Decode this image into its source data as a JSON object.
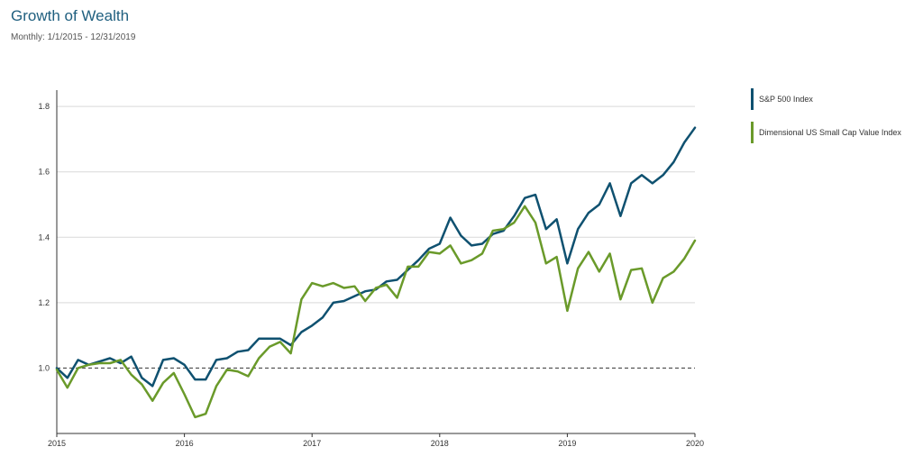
{
  "title": "Growth of Wealth",
  "subtitle": "Monthly: 1/1/2015 - 12/31/2019",
  "chart_data": {
    "type": "line",
    "title": "Growth of Wealth",
    "subtitle": "Monthly: 1/1/2015 - 12/31/2019",
    "xlabel": "",
    "ylabel": "",
    "xlim": [
      2015,
      2020
    ],
    "ylim": [
      0.8,
      1.85
    ],
    "x_ticks": [
      "2015",
      "2016",
      "2017",
      "2018",
      "2019",
      "2020"
    ],
    "y_ticks": [
      "1.0",
      "1.2",
      "1.4",
      "1.6",
      "1.8"
    ],
    "grid": "horizontal",
    "reference_line": 1.0,
    "legend_position": "right",
    "x": [
      2015.0,
      2015.0833,
      2015.1667,
      2015.25,
      2015.3333,
      2015.4167,
      2015.5,
      2015.5833,
      2015.6667,
      2015.75,
      2015.8333,
      2015.9167,
      2016.0,
      2016.0833,
      2016.1667,
      2016.25,
      2016.3333,
      2016.4167,
      2016.5,
      2016.5833,
      2016.6667,
      2016.75,
      2016.8333,
      2016.9167,
      2017.0,
      2017.0833,
      2017.1667,
      2017.25,
      2017.3333,
      2017.4167,
      2017.5,
      2017.5833,
      2017.6667,
      2017.75,
      2017.8333,
      2017.9167,
      2018.0,
      2018.0833,
      2018.1667,
      2018.25,
      2018.3333,
      2018.4167,
      2018.5,
      2018.5833,
      2018.6667,
      2018.75,
      2018.8333,
      2018.9167,
      2019.0,
      2019.0833,
      2019.1667,
      2019.25,
      2019.3333,
      2019.4167,
      2019.5,
      2019.5833,
      2019.6667,
      2019.75,
      2019.8333,
      2019.9167,
      2020.0
    ],
    "series": [
      {
        "name": "S&P 500 Index",
        "color": "#0f5170",
        "values": [
          1.0,
          0.97,
          1.025,
          1.01,
          1.02,
          1.03,
          1.015,
          1.035,
          0.97,
          0.945,
          1.025,
          1.03,
          1.01,
          0.965,
          0.965,
          1.025,
          1.03,
          1.05,
          1.055,
          1.09,
          1.09,
          1.09,
          1.07,
          1.11,
          1.13,
          1.155,
          1.2,
          1.205,
          1.22,
          1.235,
          1.24,
          1.265,
          1.27,
          1.3,
          1.33,
          1.365,
          1.38,
          1.46,
          1.405,
          1.375,
          1.38,
          1.41,
          1.42,
          1.465,
          1.52,
          1.53,
          1.425,
          1.455,
          1.32,
          1.425,
          1.475,
          1.5,
          1.565,
          1.465,
          1.565,
          1.59,
          1.565,
          1.59,
          1.63,
          1.69,
          1.735
        ]
      },
      {
        "name": "Dimensional US Small Cap Value Index",
        "color": "#6a9a2a",
        "values": [
          0.995,
          0.94,
          1.0,
          1.01,
          1.015,
          1.015,
          1.025,
          0.98,
          0.95,
          0.9,
          0.955,
          0.985,
          0.92,
          0.85,
          0.86,
          0.945,
          0.995,
          0.99,
          0.975,
          1.03,
          1.065,
          1.08,
          1.045,
          1.21,
          1.26,
          1.25,
          1.26,
          1.245,
          1.25,
          1.205,
          1.245,
          1.255,
          1.215,
          1.31,
          1.31,
          1.355,
          1.35,
          1.375,
          1.32,
          1.33,
          1.35,
          1.42,
          1.425,
          1.445,
          1.495,
          1.445,
          1.32,
          1.34,
          1.175,
          1.305,
          1.355,
          1.295,
          1.35,
          1.21,
          1.3,
          1.305,
          1.2,
          1.275,
          1.295,
          1.335,
          1.39
        ]
      }
    ]
  }
}
